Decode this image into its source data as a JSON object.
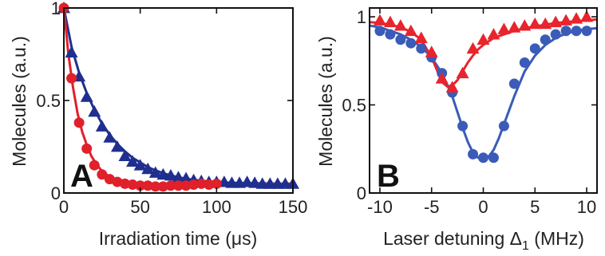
{
  "chart_data": [
    {
      "type": "scatter",
      "panel_label": "A",
      "xlabel": "Irradiation time (μs)",
      "ylabel": "Molecules (a.u.)",
      "xlim": [
        0,
        150
      ],
      "ylim": [
        0,
        1
      ],
      "xticks": [
        0,
        50,
        100,
        150
      ],
      "yticks": [
        0,
        0.5,
        1
      ],
      "x_tick_labels": [
        "0",
        "50",
        "100",
        "150"
      ],
      "y_tick_labels": [
        "0",
        "0.5",
        "1"
      ],
      "grid": false,
      "series": [
        {
          "marker": "triangle",
          "color": "#1f2f8f",
          "x": [
            0,
            5,
            10,
            15,
            20,
            25,
            30,
            35,
            40,
            45,
            50,
            55,
            60,
            65,
            70,
            75,
            80,
            85,
            90,
            95,
            100,
            105,
            110,
            115,
            120,
            125,
            130,
            135,
            140,
            145,
            150
          ],
          "y": [
            1.0,
            0.76,
            0.63,
            0.52,
            0.44,
            0.36,
            0.3,
            0.25,
            0.2,
            0.17,
            0.15,
            0.13,
            0.11,
            0.1,
            0.095,
            0.085,
            0.08,
            0.07,
            0.065,
            0.06,
            0.06,
            0.06,
            0.055,
            0.055,
            0.06,
            0.055,
            0.05,
            0.05,
            0.05,
            0.05,
            0.05
          ],
          "fit": {
            "x": [
              0,
              5,
              10,
              15,
              20,
              25,
              30,
              35,
              40,
              45,
              50,
              55,
              60,
              65,
              70,
              75,
              80,
              90,
              100,
              110,
              120,
              130,
              140,
              150
            ],
            "y": [
              1.0,
              0.79,
              0.65,
              0.54,
              0.45,
              0.375,
              0.315,
              0.265,
              0.225,
              0.19,
              0.165,
              0.14,
              0.122,
              0.107,
              0.095,
              0.085,
              0.077,
              0.066,
              0.059,
              0.055,
              0.053,
              0.052,
              0.051,
              0.05
            ]
          }
        },
        {
          "marker": "circle",
          "color": "#e0202a",
          "x": [
            0,
            5,
            10,
            15,
            20,
            25,
            30,
            35,
            40,
            45,
            50,
            55,
            60,
            65,
            70,
            75,
            80,
            85,
            90,
            95,
            100
          ],
          "y": [
            1.0,
            0.62,
            0.38,
            0.24,
            0.15,
            0.1,
            0.075,
            0.06,
            0.05,
            0.045,
            0.04,
            0.04,
            0.035,
            0.035,
            0.04,
            0.04,
            0.04,
            0.045,
            0.05,
            0.045,
            0.05
          ],
          "fit": {
            "x": [
              0,
              3,
              6,
              9,
              12,
              15,
              18,
              21,
              24,
              27,
              30,
              35,
              40,
              45,
              50,
              60,
              70,
              80,
              90,
              100,
              110,
              120,
              130,
              140,
              150
            ],
            "y": [
              1.0,
              0.75,
              0.57,
              0.43,
              0.33,
              0.26,
              0.2,
              0.16,
              0.128,
              0.105,
              0.088,
              0.069,
              0.057,
              0.05,
              0.046,
              0.042,
              0.042,
              0.043,
              0.044,
              0.046,
              0.047,
              0.048,
              0.049,
              0.05,
              0.05
            ]
          }
        }
      ]
    },
    {
      "type": "scatter",
      "panel_label": "B",
      "xlabel": "Laser detuning Δ1 (MHz)",
      "xlabel_main": "Laser detuning Δ",
      "xlabel_sub": "1",
      "xlabel_tail": " (MHz)",
      "ylabel": "Molecules (a.u.)",
      "xlim": [
        -11,
        11
      ],
      "ylim": [
        0,
        1.05
      ],
      "xticks": [
        -10,
        -5,
        0,
        5,
        10
      ],
      "yticks": [
        0,
        0.5,
        1
      ],
      "x_tick_labels": [
        "-10",
        "-5",
        "0",
        "5",
        "10"
      ],
      "y_tick_labels": [
        "0",
        "0.5",
        "1"
      ],
      "grid": false,
      "series": [
        {
          "marker": "circle",
          "color": "#3a5bb8",
          "x": [
            -10,
            -9,
            -8,
            -7,
            -6,
            -5,
            -4,
            -3,
            -2,
            -1,
            0,
            1,
            2,
            3,
            4,
            5,
            6,
            7,
            8,
            9,
            10
          ],
          "y": [
            0.92,
            0.9,
            0.87,
            0.85,
            0.82,
            0.77,
            0.68,
            0.57,
            0.38,
            0.22,
            0.2,
            0.2,
            0.38,
            0.62,
            0.74,
            0.82,
            0.87,
            0.9,
            0.92,
            0.92,
            0.92
          ],
          "fit": {
            "x": [
              -11,
              -10,
              -9,
              -8,
              -7,
              -6,
              -5,
              -4,
              -3,
              -2.5,
              -2,
              -1.5,
              -1,
              -0.5,
              0,
              0.5,
              1,
              1.5,
              2,
              2.5,
              3,
              4,
              5,
              6,
              7,
              8,
              9,
              10,
              11
            ],
            "y": [
              0.95,
              0.94,
              0.92,
              0.9,
              0.87,
              0.83,
              0.77,
              0.68,
              0.55,
              0.46,
              0.37,
              0.29,
              0.23,
              0.2,
              0.195,
              0.205,
              0.245,
              0.31,
              0.39,
              0.47,
              0.55,
              0.69,
              0.78,
              0.84,
              0.88,
              0.905,
              0.92,
              0.93,
              0.935
            ]
          }
        },
        {
          "marker": "triangle",
          "color": "#e8242c",
          "x": [
            -10,
            -9,
            -8,
            -7,
            -6,
            -5,
            -4,
            -3,
            -2,
            -1,
            0,
            1,
            2,
            3,
            4,
            5,
            6,
            7,
            8,
            9,
            10
          ],
          "y": [
            0.98,
            0.97,
            0.95,
            0.92,
            0.88,
            0.8,
            0.65,
            0.6,
            0.68,
            0.82,
            0.87,
            0.9,
            0.93,
            0.94,
            0.95,
            0.96,
            0.96,
            0.97,
            0.98,
            0.99,
            1.0
          ],
          "fit": {
            "x": [
              -11,
              -10,
              -9,
              -8,
              -7,
              -6,
              -5,
              -4.5,
              -4,
              -3.5,
              -3,
              -2.5,
              -2,
              -1.5,
              -1,
              -0.5,
              0,
              1,
              2,
              3,
              4,
              5,
              6,
              7,
              8,
              9,
              10,
              11
            ],
            "y": [
              0.97,
              0.965,
              0.955,
              0.94,
              0.915,
              0.87,
              0.77,
              0.7,
              0.63,
              0.605,
              0.61,
              0.64,
              0.69,
              0.74,
              0.78,
              0.815,
              0.84,
              0.88,
              0.9,
              0.92,
              0.935,
              0.945,
              0.955,
              0.965,
              0.97,
              0.975,
              0.98,
              0.985
            ]
          }
        }
      ]
    }
  ]
}
